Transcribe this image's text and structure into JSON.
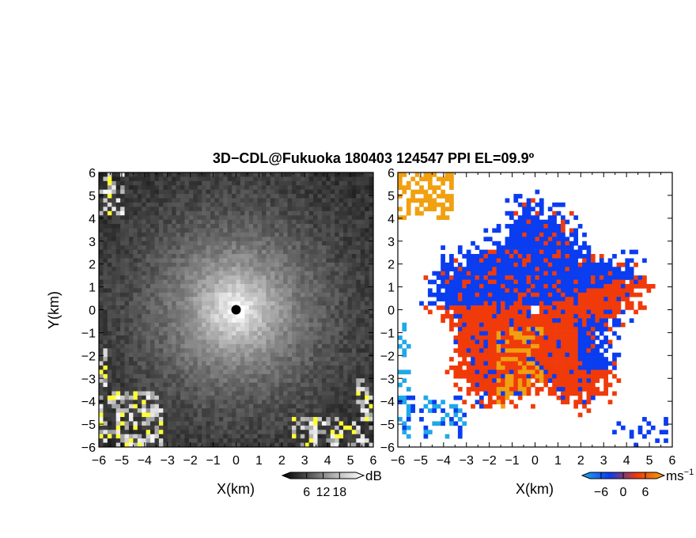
{
  "title": "3D−CDL@Fukuoka 180403 124547 PPI EL=09.9º",
  "chart_data": [
    {
      "type": "heatmap",
      "name": "reflectivity",
      "xlabel": "X(km)",
      "ylabel": "Y(km)",
      "xlim": [
        -6,
        6
      ],
      "ylim": [
        -6,
        6
      ],
      "xticks": [
        "−6",
        "−5",
        "−4",
        "−3",
        "−2",
        "−1",
        "0",
        "1",
        "2",
        "3",
        "4",
        "5",
        "6"
      ],
      "yticks": [
        "6",
        "5",
        "4",
        "3",
        "2",
        "1",
        "0",
        "−1",
        "−2",
        "−3",
        "−4",
        "−5",
        "−6"
      ],
      "colorbar": {
        "unit": "dB",
        "ticks": [
          "6",
          "12",
          "18"
        ],
        "range": [
          0,
          24
        ]
      },
      "colors": {
        "low": "#000000",
        "high": "#ffffff",
        "clip": "#ffff33"
      }
    },
    {
      "type": "heatmap",
      "name": "doppler-velocity",
      "xlabel": "X(km)",
      "xlim": [
        -6,
        6
      ],
      "ylim": [
        -6,
        6
      ],
      "xticks": [
        "−6",
        "−5",
        "−4",
        "−3",
        "−2",
        "−1",
        "0",
        "1",
        "2",
        "3",
        "4",
        "5",
        "6"
      ],
      "yticks": [
        "6",
        "5",
        "4",
        "3",
        "2",
        "1",
        "0",
        "−1",
        "−2",
        "−3",
        "−4",
        "−5",
        "−6"
      ],
      "colorbar": {
        "unit": "ms",
        "unit_exp": "−1",
        "ticks": [
          "−6",
          "0",
          "6"
        ],
        "range": [
          -9,
          9
        ]
      },
      "colors": {
        "toward": "#0a3cf0",
        "away": "#f03a0a",
        "far_toward": "#20a8e8",
        "far_away": "#f0a010"
      }
    }
  ]
}
